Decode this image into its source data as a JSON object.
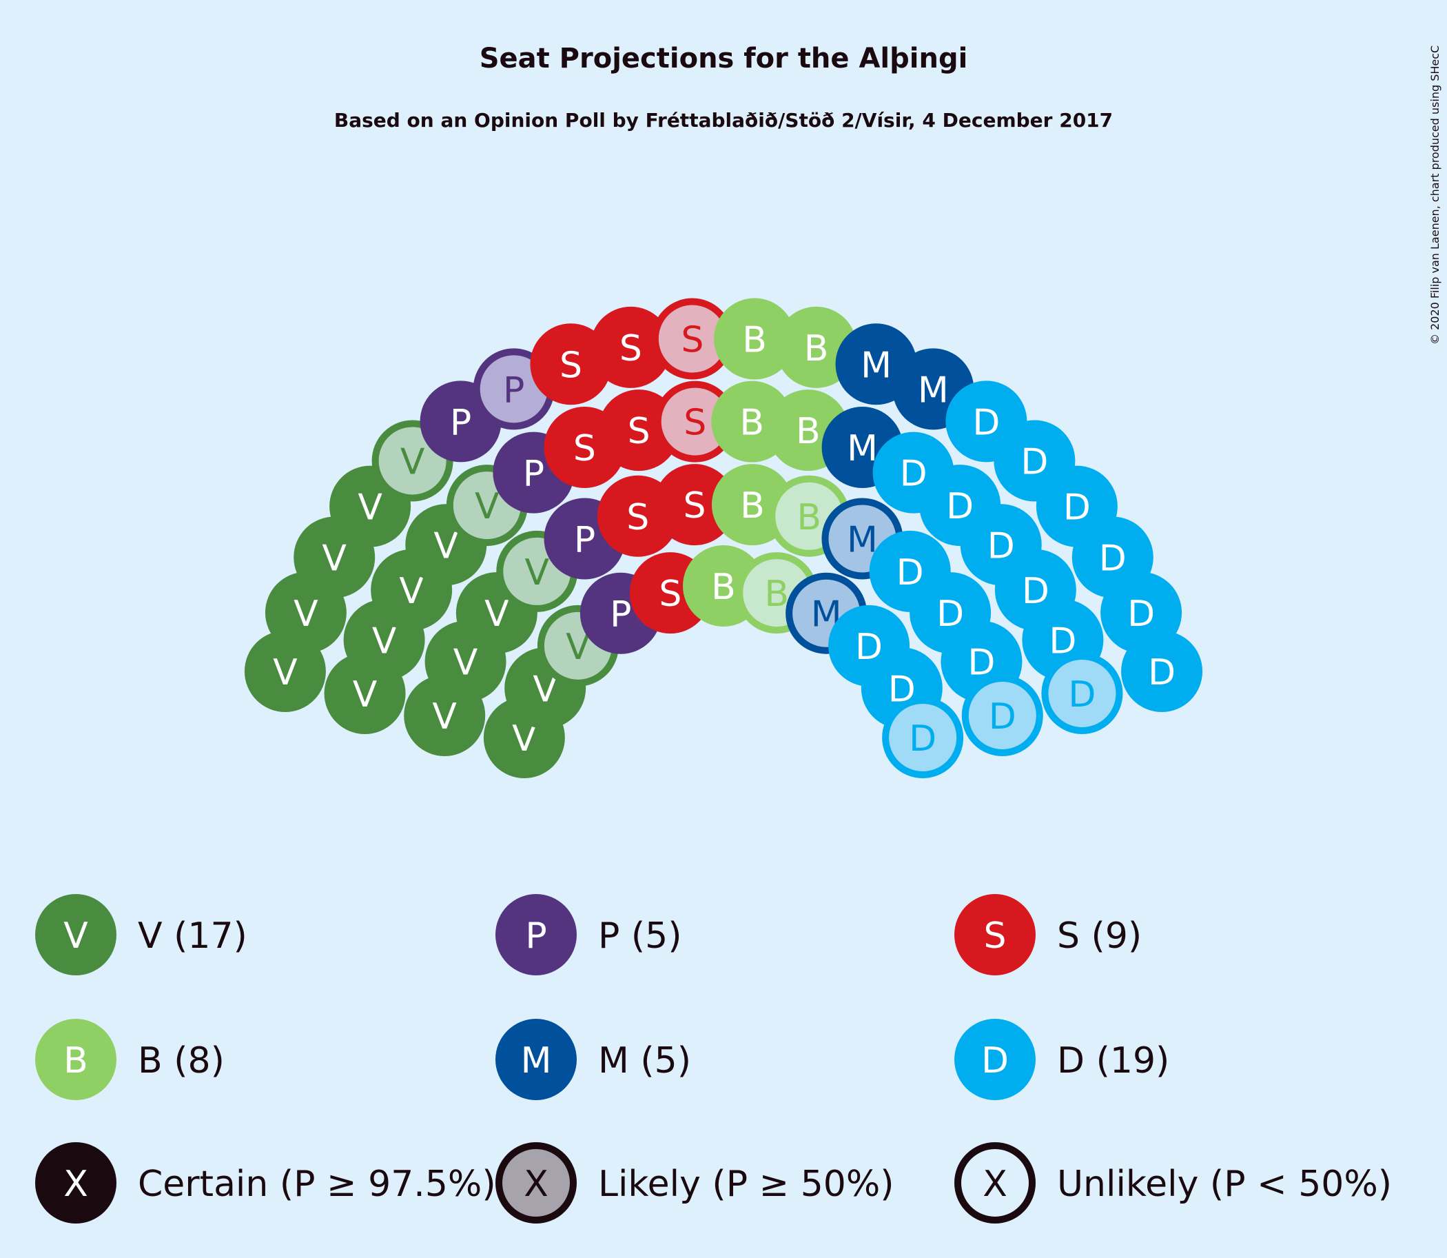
{
  "title": "Seat Projections for the Alþingi",
  "subtitle": "Based on an Opinion Poll by Fréttablaðið/Stöð 2/Vísir, 4 December 2017",
  "credit": "© 2020 Filip van Laenen, chart produced using SHecC",
  "chart_data": {
    "type": "seat-projection",
    "parties": [
      {
        "code": "V",
        "seats": 17,
        "likely": 4,
        "unlikely": 0,
        "color": "#4a8c3f",
        "light": "#b3d3bc",
        "label": "V (17)"
      },
      {
        "code": "P",
        "seats": 5,
        "likely": 1,
        "unlikely": 0,
        "color": "#54337f",
        "light": "#b4aed6",
        "label": "P (5)"
      },
      {
        "code": "S",
        "seats": 9,
        "likely": 2,
        "unlikely": 0,
        "color": "#d7191f",
        "light": "#e2b3bf",
        "label": "S (9)"
      },
      {
        "code": "B",
        "seats": 8,
        "likely": 2,
        "unlikely": 0,
        "color": "#8fd064",
        "light": "#c7e8cc",
        "label": "B (8)"
      },
      {
        "code": "M",
        "seats": 5,
        "likely": 2,
        "unlikely": 0,
        "color": "#00509b",
        "light": "#a4c4e6",
        "label": "M (5)"
      },
      {
        "code": "D",
        "seats": 19,
        "likely": 3,
        "unlikely": 0,
        "color": "#00aeef",
        "light": "#9fdaf7",
        "label": "D (19)"
      }
    ],
    "legend_status": [
      {
        "key": "certain",
        "symbol": "X",
        "label": "Certain (P ≥ 97.5%)"
      },
      {
        "key": "likely",
        "symbol": "X",
        "label": "Likely (P ≥ 50%)"
      },
      {
        "key": "unlikely",
        "symbol": "X",
        "label": "Unlikely (P < 50%)"
      }
    ]
  }
}
